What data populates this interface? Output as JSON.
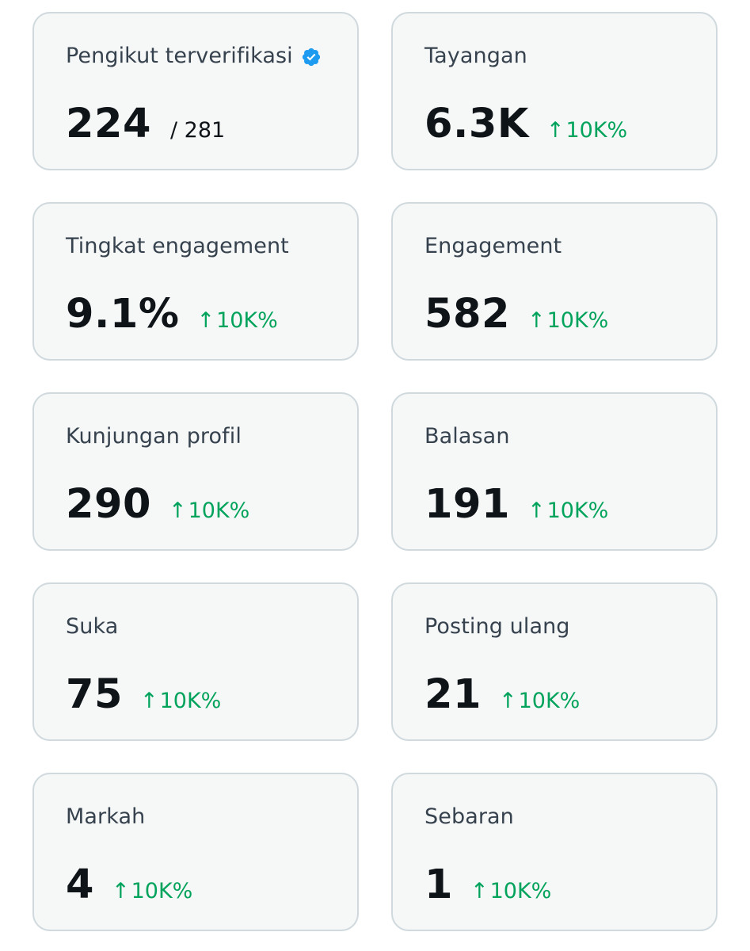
{
  "theme": {
    "card_background": "#f6f7f7",
    "card_border": "#cfd9de",
    "trend_up_color": "#00a35c",
    "verified_color": "#1d9bf0"
  },
  "cards": [
    {
      "title": "Pengikut terverifikasi",
      "value": "224",
      "total": "/ 281",
      "verified_icon": "verified-badge-icon"
    },
    {
      "title": "Tayangan",
      "value": "6.3K",
      "trend_arrow": "↑",
      "trend": "10K%"
    },
    {
      "title": "Tingkat engagement",
      "value": "9.1%",
      "trend_arrow": "↑",
      "trend": "10K%"
    },
    {
      "title": "Engagement",
      "value": "582",
      "trend_arrow": "↑",
      "trend": "10K%"
    },
    {
      "title": "Kunjungan profil",
      "value": "290",
      "trend_arrow": "↑",
      "trend": "10K%"
    },
    {
      "title": "Balasan",
      "value": "191",
      "trend_arrow": "↑",
      "trend": "10K%"
    },
    {
      "title": "Suka",
      "value": "75",
      "trend_arrow": "↑",
      "trend": "10K%"
    },
    {
      "title": "Posting ulang",
      "value": "21",
      "trend_arrow": "↑",
      "trend": "10K%"
    },
    {
      "title": "Markah",
      "value": "4",
      "trend_arrow": "↑",
      "trend": "10K%"
    },
    {
      "title": "Sebaran",
      "value": "1",
      "trend_arrow": "↑",
      "trend": "10K%"
    }
  ]
}
